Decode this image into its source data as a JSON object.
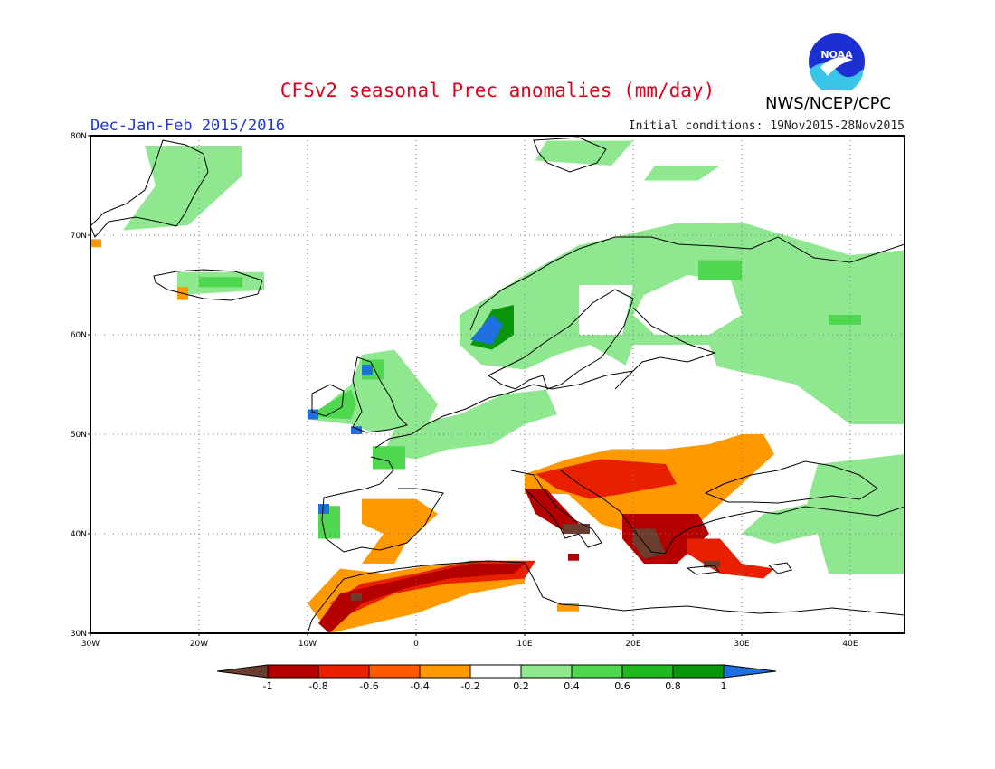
{
  "title": "CFSv2 seasonal Prec anomalies (mm/day)",
  "agency": "NWS/NCEP/CPC",
  "logo_text": "NOAA",
  "season": "Dec-Jan-Feb 2015/2016",
  "init": "Initial conditions: 19Nov2015-28Nov2015",
  "axes": {
    "lat_ticks": [
      "80N",
      "70N",
      "60N",
      "50N",
      "40N",
      "30N"
    ],
    "lon_ticks": [
      "30W",
      "20W",
      "10W",
      "0",
      "10E",
      "20E",
      "30E",
      "40E"
    ]
  },
  "colorbar": {
    "labels": [
      "-1",
      "-0.8",
      "-0.6",
      "-0.4",
      "-0.2",
      "0.2",
      "0.4",
      "0.6",
      "0.8",
      "1"
    ],
    "colors": [
      "#6b3d2e",
      "#b50000",
      "#e82000",
      "#ff5a00",
      "#ff9900",
      "#ffffff",
      "#8fe88f",
      "#4fd84f",
      "#1fb81f",
      "#0a960a",
      "#1e6fe0"
    ]
  },
  "chart_data": {
    "type": "heatmap",
    "variable": "Precipitation anomaly (mm/day)",
    "lon_range": [
      -30,
      45
    ],
    "lat_range": [
      30,
      80
    ],
    "regions": [
      {
        "name": "Greenland coast",
        "cls": "pos1",
        "poly": [
          [
            -25,
            79
          ],
          [
            -16,
            79
          ],
          [
            -16,
            76
          ],
          [
            -21,
            71
          ],
          [
            -27,
            70.5
          ],
          [
            -24,
            75
          ]
        ]
      },
      {
        "name": "Svalbard/Barents",
        "cls": "pos1",
        "poly": [
          [
            12,
            79.5
          ],
          [
            20,
            79.5
          ],
          [
            18,
            77
          ],
          [
            11,
            77.5
          ]
        ]
      },
      {
        "name": "Novaya Zemlya area",
        "cls": "pos1",
        "poly": [
          [
            22,
            77
          ],
          [
            28,
            77
          ],
          [
            26,
            75.5
          ],
          [
            21,
            75.5
          ]
        ]
      },
      {
        "name": "Iceland",
        "cls": "pos1",
        "poly": [
          [
            -22,
            66.3
          ],
          [
            -14,
            66.3
          ],
          [
            -14,
            64.5
          ],
          [
            -22,
            64
          ]
        ]
      },
      {
        "name": "Iceland core",
        "cls": "pos2",
        "poly": [
          [
            -20,
            65.8
          ],
          [
            -16,
            65.8
          ],
          [
            -16,
            64.8
          ],
          [
            -20,
            64.8
          ]
        ]
      },
      {
        "name": "Iceland south",
        "cls": "neg4",
        "poly": [
          [
            -22,
            64.8
          ],
          [
            -21,
            64.8
          ],
          [
            -21,
            63.5
          ],
          [
            -22,
            63.5
          ]
        ]
      },
      {
        "name": "Jan Mayen",
        "cls": "neg4",
        "poly": [
          [
            -30,
            69.6
          ],
          [
            -29,
            69.6
          ],
          [
            -29,
            68.8
          ],
          [
            -30,
            68.8
          ]
        ]
      },
      {
        "name": "Norway & Scandinavia north",
        "cls": "pos1",
        "poly": [
          [
            4,
            62
          ],
          [
            10,
            66
          ],
          [
            15,
            69
          ],
          [
            24,
            71.2
          ],
          [
            30,
            71.3
          ],
          [
            40,
            68
          ],
          [
            45,
            68.5
          ],
          [
            45,
            51
          ],
          [
            40,
            51
          ],
          [
            35,
            55
          ],
          [
            27,
            57
          ],
          [
            20,
            56.5
          ],
          [
            16,
            59
          ],
          [
            13,
            58
          ],
          [
            10,
            56.5
          ],
          [
            6,
            57
          ],
          [
            4,
            59
          ]
        ]
      },
      {
        "name": "Finland dry gap",
        "cls": "zero",
        "poly": [
          [
            21,
            64
          ],
          [
            25,
            66
          ],
          [
            29,
            65.5
          ],
          [
            30,
            62
          ],
          [
            27,
            60
          ],
          [
            22,
            60
          ],
          [
            20,
            62
          ]
        ]
      },
      {
        "name": "Gulf of Bothnia dry gap",
        "cls": "zero",
        "poly": [
          [
            15,
            65
          ],
          [
            20,
            65
          ],
          [
            19,
            60
          ],
          [
            15,
            60
          ]
        ]
      },
      {
        "name": "Baltic dry gap",
        "cls": "zero",
        "poly": [
          [
            20,
            59
          ],
          [
            27,
            59
          ],
          [
            28,
            56
          ],
          [
            22,
            55
          ],
          [
            19,
            56
          ]
        ]
      },
      {
        "name": "Western Norway",
        "cls": "pos3",
        "poly": [
          [
            5,
            59
          ],
          [
            7,
            62.5
          ],
          [
            9,
            63
          ],
          [
            9,
            60
          ],
          [
            7,
            58.5
          ]
        ]
      },
      {
        "name": "Western Norway blue",
        "cls": "pos5",
        "poly": [
          [
            5,
            59.5
          ],
          [
            7,
            62
          ],
          [
            8,
            61
          ],
          [
            7,
            59
          ]
        ]
      },
      {
        "name": "Finland green",
        "cls": "pos2",
        "poly": [
          [
            26,
            67.5
          ],
          [
            30,
            67.5
          ],
          [
            30,
            65.5
          ],
          [
            26,
            65.5
          ]
        ]
      },
      {
        "name": "Russia green",
        "cls": "pos2",
        "poly": [
          [
            38,
            62
          ],
          [
            41,
            62
          ],
          [
            41,
            61
          ],
          [
            38,
            61
          ]
        ]
      },
      {
        "name": "British Isles",
        "cls": "pos1",
        "poly": [
          [
            -10,
            51.5
          ],
          [
            -6,
            55
          ],
          [
            -5,
            58
          ],
          [
            -2,
            58.5
          ],
          [
            2,
            53
          ],
          [
            1,
            51
          ],
          [
            -4,
            50.2
          ],
          [
            -6,
            51
          ],
          [
            -10,
            51.5
          ]
        ]
      },
      {
        "name": "Ireland",
        "cls": "pos2",
        "poly": [
          [
            -10,
            51.8
          ],
          [
            -6,
            54.5
          ],
          [
            -5.5,
            53
          ],
          [
            -6,
            51.5
          ]
        ]
      },
      {
        "name": "Scotland",
        "cls": "pos2",
        "poly": [
          [
            -5,
            57.5
          ],
          [
            -3,
            57.5
          ],
          [
            -3,
            55.5
          ],
          [
            -5,
            55.5
          ]
        ]
      },
      {
        "name": "Ireland blue",
        "cls": "pos5",
        "poly": [
          [
            -10,
            52.5
          ],
          [
            -9,
            52.5
          ],
          [
            -9,
            51.5
          ],
          [
            -10,
            51.5
          ]
        ]
      },
      {
        "name": "Wales blue",
        "cls": "pos5",
        "poly": [
          [
            -6,
            50.8
          ],
          [
            -5,
            50.8
          ],
          [
            -5,
            50
          ],
          [
            -6,
            50
          ]
        ]
      },
      {
        "name": "Scotland blue",
        "cls": "pos5",
        "poly": [
          [
            -5,
            57
          ],
          [
            -4,
            57
          ],
          [
            -4,
            56
          ],
          [
            -5,
            56
          ]
        ]
      },
      {
        "name": "Low Countries/N Germany",
        "cls": "pos1",
        "poly": [
          [
            -2,
            50.5
          ],
          [
            4,
            52
          ],
          [
            8,
            54
          ],
          [
            12,
            54.5
          ],
          [
            13,
            52
          ],
          [
            10,
            51
          ],
          [
            7,
            49
          ],
          [
            3,
            48.5
          ],
          [
            0,
            47.5
          ],
          [
            -3,
            48
          ]
        ]
      },
      {
        "name": "France west",
        "cls": "pos2",
        "poly": [
          [
            -4,
            48.8
          ],
          [
            -1,
            48.8
          ],
          [
            -1,
            46.5
          ],
          [
            -4,
            46.5
          ]
        ]
      },
      {
        "name": "Portugal",
        "cls": "pos2",
        "poly": [
          [
            -9,
            42.8
          ],
          [
            -7,
            42.8
          ],
          [
            -7,
            39.5
          ],
          [
            -9,
            39.5
          ]
        ]
      },
      {
        "name": "Portugal blue",
        "cls": "pos5",
        "poly": [
          [
            -9,
            43
          ],
          [
            -8,
            43
          ],
          [
            -8,
            42
          ],
          [
            -9,
            42
          ]
        ]
      },
      {
        "name": "Turkey/Caspian green",
        "cls": "pos1",
        "poly": [
          [
            37,
            47
          ],
          [
            45,
            48
          ],
          [
            45,
            36
          ],
          [
            38,
            36
          ],
          [
            37,
            40
          ],
          [
            33,
            39
          ],
          [
            30,
            40
          ],
          [
            32,
            42
          ],
          [
            36,
            43
          ]
        ]
      },
      {
        "name": "Spain east",
        "cls": "neg4",
        "poly": [
          [
            -5,
            43.5
          ],
          [
            0,
            43.5
          ],
          [
            2,
            42
          ],
          [
            -1,
            39
          ],
          [
            -2,
            37
          ],
          [
            -5,
            37
          ],
          [
            -3,
            40
          ],
          [
            -5,
            41
          ]
        ]
      },
      {
        "name": "Balkans & Danube",
        "cls": "neg4",
        "poly": [
          [
            10,
            46
          ],
          [
            14,
            47.5
          ],
          [
            18,
            48.5
          ],
          [
            23,
            48.5
          ],
          [
            27,
            49
          ],
          [
            30,
            50
          ],
          [
            32,
            50
          ],
          [
            33,
            48
          ],
          [
            30,
            45
          ],
          [
            28,
            43
          ],
          [
            26,
            41
          ],
          [
            20,
            40
          ],
          [
            17,
            41
          ],
          [
            14,
            44
          ],
          [
            10,
            44
          ]
        ]
      },
      {
        "name": "Adriatic/Bosnia",
        "cls": "neg3",
        "poly": [
          [
            11,
            46
          ],
          [
            17,
            47.5
          ],
          [
            23,
            47
          ],
          [
            24,
            45
          ],
          [
            19,
            44
          ],
          [
            16,
            43.5
          ],
          [
            13,
            44.5
          ]
        ]
      },
      {
        "name": "Italy west coast",
        "cls": "neg2",
        "poly": [
          [
            10,
            44.5
          ],
          [
            12,
            44.5
          ],
          [
            15,
            41
          ],
          [
            14,
            40
          ],
          [
            11,
            42
          ]
        ]
      },
      {
        "name": "Greece",
        "cls": "neg2",
        "poly": [
          [
            19,
            42
          ],
          [
            26,
            42
          ],
          [
            27,
            40
          ],
          [
            24,
            37
          ],
          [
            21,
            37
          ],
          [
            19,
            39.5
          ]
        ]
      },
      {
        "name": "Greece brown",
        "cls": "neg1",
        "poly": [
          [
            20,
            40.5
          ],
          [
            22,
            40.5
          ],
          [
            23,
            38
          ],
          [
            21,
            37.5
          ],
          [
            20,
            39
          ]
        ]
      },
      {
        "name": "Italy brown",
        "cls": "neg1",
        "poly": [
          [
            13.5,
            41
          ],
          [
            16,
            41
          ],
          [
            16,
            40
          ],
          [
            13.5,
            40
          ]
        ]
      },
      {
        "name": "Sardinia/Sicily",
        "cls": "neg2",
        "poly": [
          [
            14,
            38
          ],
          [
            15,
            38
          ],
          [
            15,
            37.3
          ],
          [
            14,
            37.3
          ]
        ]
      },
      {
        "name": "Aegean/Turkey SW",
        "cls": "neg3",
        "poly": [
          [
            25,
            39.5
          ],
          [
            28,
            39.5
          ],
          [
            30,
            37
          ],
          [
            33,
            36.5
          ],
          [
            32,
            35.5
          ],
          [
            28,
            36
          ],
          [
            25,
            38
          ]
        ]
      },
      {
        "name": "Aegean brown",
        "cls": "neg1",
        "poly": [
          [
            26.5,
            37.3
          ],
          [
            28,
            37.3
          ],
          [
            28,
            36.6
          ],
          [
            26.5,
            36.6
          ]
        ]
      },
      {
        "name": "North Africa orange",
        "cls": "neg4",
        "poly": [
          [
            -10,
            33
          ],
          [
            -7,
            36.5
          ],
          [
            -3,
            36
          ],
          [
            2,
            37
          ],
          [
            7,
            37
          ],
          [
            10,
            37
          ],
          [
            10,
            35
          ],
          [
            5,
            34
          ],
          [
            0,
            32
          ],
          [
            -4,
            31
          ],
          [
            -8,
            30
          ]
        ]
      },
      {
        "name": "Atlas/Algeria coast",
        "cls": "neg3",
        "poly": [
          [
            -8,
            33
          ],
          [
            -5,
            35
          ],
          [
            0,
            36
          ],
          [
            5,
            37.3
          ],
          [
            11,
            37.3
          ],
          [
            10,
            35.5
          ],
          [
            3,
            35
          ],
          [
            -2,
            34
          ],
          [
            -6,
            32
          ]
        ]
      },
      {
        "name": "Morocco/Algeria darkred",
        "cls": "neg2",
        "poly": [
          [
            -9,
            31
          ],
          [
            -7,
            34
          ],
          [
            -3,
            35
          ],
          [
            1,
            36
          ],
          [
            5,
            37
          ],
          [
            10,
            37
          ],
          [
            9,
            36
          ],
          [
            3,
            35.5
          ],
          [
            -1,
            34.5
          ],
          [
            -5,
            33
          ],
          [
            -8,
            30
          ]
        ]
      },
      {
        "name": "Algeria brown",
        "cls": "neg1",
        "poly": [
          [
            -6,
            34
          ],
          [
            -5,
            34
          ],
          [
            -5,
            33.3
          ],
          [
            -6,
            33.3
          ]
        ]
      },
      {
        "name": "Libya small",
        "cls": "neg4",
        "poly": [
          [
            13,
            33
          ],
          [
            15,
            33
          ],
          [
            15,
            32.2
          ],
          [
            13,
            32.2
          ]
        ]
      }
    ]
  }
}
